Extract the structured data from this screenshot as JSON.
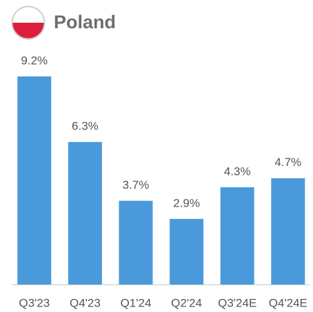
{
  "chart_data": {
    "type": "bar",
    "title": "Poland",
    "categories": [
      "Q3'23",
      "Q4'23",
      "Q1'24",
      "Q2'24",
      "Q3'24E",
      "Q4'24E"
    ],
    "values": [
      9.2,
      6.3,
      3.7,
      2.9,
      4.3,
      4.7
    ],
    "value_labels": [
      "9.2%",
      "6.3%",
      "3.7%",
      "2.9%",
      "4.3%",
      "4.7%"
    ],
    "color": "#4a9adb"
  }
}
